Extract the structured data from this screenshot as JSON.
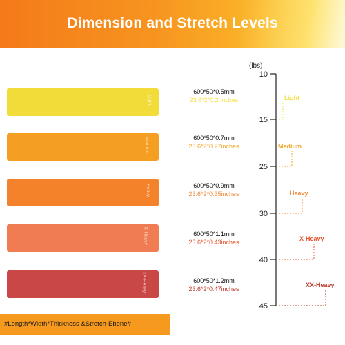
{
  "title": "Dimension and Stretch Levels",
  "unit_label": "(lbs)",
  "footer_text": "#Length*Width*Thickness &Stretch-Ebene#",
  "scale_ticks": [
    {
      "label": "10"
    },
    {
      "label": "15"
    },
    {
      "label": "25"
    },
    {
      "label": "30"
    },
    {
      "label": "40"
    },
    {
      "label": "45"
    }
  ],
  "bands": [
    {
      "level": "Light",
      "mark": "Light",
      "dim_mm": "600*50*0.5mm",
      "dim_in": "23.6*2*0.2 inches",
      "color": "#f2dc3a",
      "text_color": "#f5e14a"
    },
    {
      "level": "Medium",
      "mark": "Medium",
      "dim_mm": "600*50*0.7mm",
      "dim_in": "23.6*2*0.27inches",
      "color": "#f59f22",
      "text_color": "#f5a522"
    },
    {
      "level": "Heavy",
      "mark": "Heavy",
      "dim_mm": "600*50*0.9mm",
      "dim_in": "23.6*2*0.35inches",
      "color": "#f4822a",
      "text_color": "#f08a3a"
    },
    {
      "level": "X-Heavy",
      "mark": "X-Heavy",
      "dim_mm": "600*50*1.1mm",
      "dim_in": "23.6*2*0.43inches",
      "color": "#ef7c52",
      "text_color": "#e5532d"
    },
    {
      "level": "XX-Heavy",
      "mark": "XX-Heavy",
      "dim_mm": "600*50*1.2mm",
      "dim_in": "23.6*2*0.47inches",
      "color": "#c94744",
      "text_color": "#c0392b"
    }
  ]
}
